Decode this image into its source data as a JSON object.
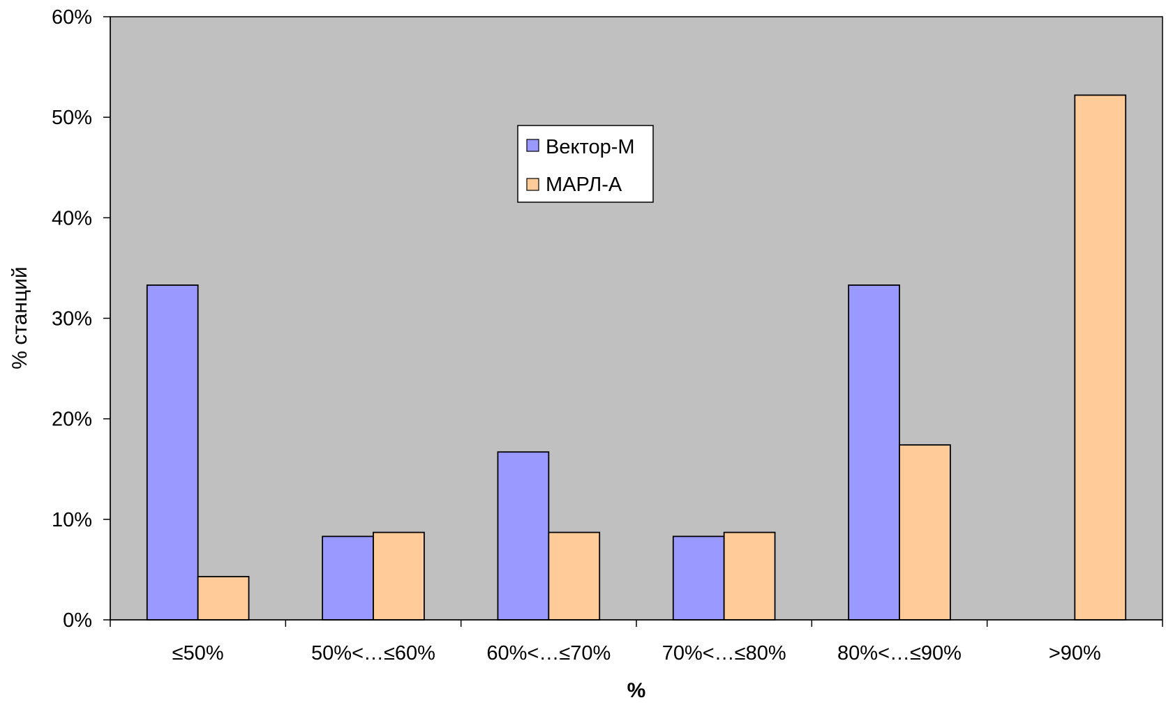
{
  "chart_data": {
    "type": "bar",
    "xlabel": "%",
    "ylabel": "% станций",
    "categories": [
      "≤50%",
      "50%<…≤60%",
      "60%<…≤70%",
      "70%<…≤80%",
      "80%<…≤90%",
      ">90%"
    ],
    "series": [
      {
        "name": "Вектор-М",
        "color": "#9999ff",
        "values": [
          33.3,
          8.3,
          16.7,
          8.3,
          33.3,
          0
        ]
      },
      {
        "name": "МАРЛ-А",
        "color": "#ffcc99",
        "values": [
          4.3,
          8.7,
          8.7,
          8.7,
          17.4,
          52.2
        ]
      }
    ],
    "yticks": [
      "0%",
      "10%",
      "20%",
      "30%",
      "40%",
      "50%",
      "60%"
    ],
    "ylim": [
      0,
      60
    ],
    "grid": false,
    "plot_background": "#c0c0c0",
    "legend_position": "top-center"
  }
}
